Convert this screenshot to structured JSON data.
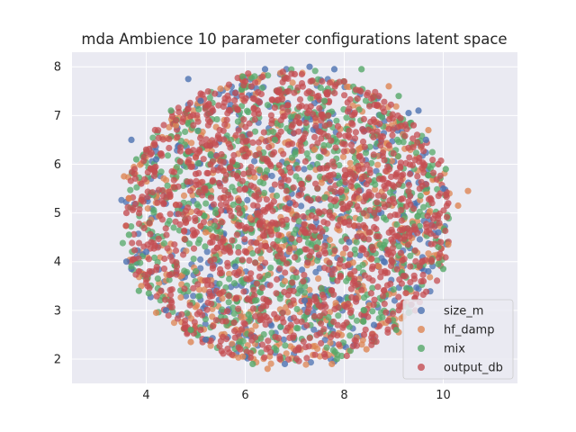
{
  "chart_data": {
    "type": "scatter",
    "title": "mda Ambience 10 parameter configurations latent space",
    "xlabel": "",
    "ylabel": "",
    "xlim": [
      2.5,
      11.5
    ],
    "ylim": [
      1.5,
      8.3
    ],
    "xticks": [
      "4",
      "6",
      "8",
      "10"
    ],
    "yticks": [
      "2",
      "3",
      "4",
      "5",
      "6",
      "7",
      "8"
    ],
    "grid": true,
    "legend_position": "lower-right",
    "series": [
      {
        "name": "size_m",
        "color": "#4c72b0",
        "points": [
          [
            3.7,
            6.5
          ],
          [
            3.6,
            4.0
          ],
          [
            3.7,
            3.85
          ],
          [
            4.85,
            7.75
          ],
          [
            6.4,
            7.95
          ],
          [
            7.3,
            8.0
          ],
          [
            7.8,
            7.95
          ],
          [
            9.3,
            7.05
          ],
          [
            9.5,
            7.1
          ],
          [
            9.65,
            6.5
          ],
          [
            10.0,
            5.5
          ],
          [
            9.9,
            4.6
          ],
          [
            9.7,
            3.8
          ],
          [
            9.3,
            2.95
          ],
          [
            8.6,
            2.7
          ],
          [
            7.8,
            1.95
          ],
          [
            6.8,
            1.9
          ],
          [
            6.0,
            2.05
          ],
          [
            5.2,
            2.4
          ],
          [
            4.4,
            3.0
          ],
          [
            4.0,
            4.2
          ],
          [
            4.2,
            6.1
          ],
          [
            5.1,
            7.3
          ],
          [
            6.9,
            5.2
          ],
          [
            8.1,
            4.4
          ],
          [
            5.8,
            3.9
          ],
          [
            7.2,
            3.2
          ]
        ]
      },
      {
        "name": "hf_damp",
        "color": "#dd8452",
        "points": [
          [
            3.55,
            5.75
          ],
          [
            3.65,
            5.3
          ],
          [
            10.5,
            5.45
          ],
          [
            10.3,
            5.15
          ],
          [
            6.45,
            1.8
          ],
          [
            5.95,
            2.05
          ],
          [
            7.75,
            1.9
          ],
          [
            8.45,
            2.2
          ],
          [
            9.1,
            2.55
          ],
          [
            4.9,
            2.35
          ],
          [
            4.2,
            2.95
          ],
          [
            3.9,
            3.5
          ],
          [
            5.5,
            7.55
          ],
          [
            8.9,
            7.6
          ],
          [
            9.7,
            6.7
          ],
          [
            10.1,
            4.35
          ],
          [
            4.6,
            6.8
          ],
          [
            7.4,
            6.3
          ],
          [
            6.1,
            4.9
          ],
          [
            8.3,
            5.3
          ],
          [
            5.2,
            4.6
          ],
          [
            6.8,
            3.6
          ],
          [
            8.7,
            3.9
          ]
        ]
      },
      {
        "name": "mix",
        "color": "#55a868",
        "points": [
          [
            3.85,
            3.4
          ],
          [
            4.05,
            3.35
          ],
          [
            3.65,
            4.55
          ],
          [
            3.7,
            3.9
          ],
          [
            5.95,
            7.8
          ],
          [
            8.35,
            7.95
          ],
          [
            9.1,
            7.4
          ],
          [
            9.35,
            6.85
          ],
          [
            9.9,
            4.3
          ],
          [
            10.0,
            3.85
          ],
          [
            9.9,
            3.95
          ],
          [
            9.05,
            2.6
          ],
          [
            9.3,
            2.95
          ],
          [
            7.85,
            2.0
          ],
          [
            6.15,
            1.9
          ],
          [
            4.9,
            2.6
          ],
          [
            10.05,
            5.9
          ],
          [
            3.8,
            6.1
          ],
          [
            4.5,
            7.1
          ],
          [
            6.6,
            6.5
          ],
          [
            7.9,
            5.6
          ],
          [
            5.4,
            5.0
          ],
          [
            7.1,
            4.2
          ],
          [
            8.8,
            4.9
          ],
          [
            6.2,
            3.2
          ],
          [
            5.0,
            3.8
          ],
          [
            8.4,
            3.0
          ],
          [
            7.6,
            7.3
          ],
          [
            5.3,
            6.2
          ]
        ]
      },
      {
        "name": "output_db",
        "color": "#c44e52",
        "points": [
          [
            3.6,
            5.0
          ],
          [
            3.75,
            4.05
          ],
          [
            3.85,
            3.8
          ],
          [
            4.6,
            6.9
          ],
          [
            5.1,
            7.45
          ],
          [
            6.0,
            7.7
          ],
          [
            7.0,
            7.85
          ],
          [
            8.0,
            7.7
          ],
          [
            8.7,
            7.4
          ],
          [
            9.4,
            6.8
          ],
          [
            9.9,
            6.0
          ],
          [
            10.1,
            5.2
          ],
          [
            9.95,
            4.4
          ],
          [
            9.6,
            3.6
          ],
          [
            9.1,
            3.0
          ],
          [
            8.4,
            2.5
          ],
          [
            7.6,
            2.1
          ],
          [
            6.7,
            2.0
          ],
          [
            5.9,
            2.2
          ],
          [
            5.1,
            2.6
          ],
          [
            4.5,
            3.2
          ],
          [
            4.1,
            4.4
          ],
          [
            3.9,
            5.6
          ],
          [
            4.0,
            6.3
          ],
          [
            6.5,
            6.0
          ],
          [
            7.5,
            5.0
          ],
          [
            5.5,
            4.4
          ],
          [
            8.5,
            4.6
          ],
          [
            6.9,
            3.4
          ],
          [
            6.0,
            5.5
          ],
          [
            7.9,
            6.6
          ],
          [
            5.0,
            5.8
          ],
          [
            8.9,
            5.6
          ],
          [
            7.2,
            4.6
          ],
          [
            4.8,
            4.8
          ],
          [
            6.3,
            2.8
          ],
          [
            8.2,
            3.6
          ]
        ]
      }
    ]
  }
}
